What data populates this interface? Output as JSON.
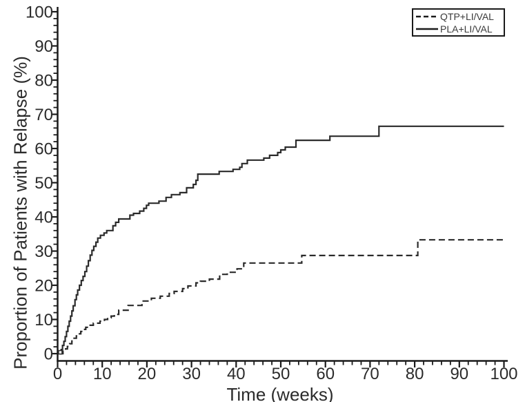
{
  "figure": {
    "background": "#ffffff",
    "axis_color": "#1a1a1a",
    "text_color": "#2b2b2b",
    "curve_color": "#2a2a2a"
  },
  "legend": {
    "position": "top-right",
    "items": [
      {
        "label": "QTP+LI/VAL",
        "style": "dashed"
      },
      {
        "label": "PLA+LI/VAL",
        "style": "solid"
      }
    ]
  },
  "chart_data": {
    "type": "line",
    "subtype": "kaplan-meier-step",
    "title": "",
    "xlabel": "Time (weeks)",
    "ylabel": "Proportion of Patients with Relapse (%)",
    "xlim": [
      0,
      100
    ],
    "ylim": [
      0,
      100
    ],
    "x_major_ticks": [
      0,
      10,
      20,
      30,
      40,
      50,
      60,
      70,
      80,
      90,
      100
    ],
    "x_minor_step": 2,
    "y_major_ticks": [
      0,
      10,
      20,
      30,
      40,
      50,
      60,
      70,
      80,
      90,
      100
    ],
    "y_minor_step": 2,
    "grid": false,
    "legend_position": "top-right",
    "annotations": [
      {
        "type": "open-square-marker",
        "x": 0.6,
        "y": 0.4
      }
    ],
    "series": [
      {
        "name": "QTP+LI/VAL",
        "line": "dashed",
        "color": "#2a2a2a",
        "points": [
          [
            0.5,
            0
          ],
          [
            1.2,
            0.7
          ],
          [
            1.8,
            1.4
          ],
          [
            2.2,
            2.1
          ],
          [
            2.7,
            2.9
          ],
          [
            3.2,
            3.7
          ],
          [
            3.7,
            4.5
          ],
          [
            4.2,
            5.2
          ],
          [
            4.7,
            5.8
          ],
          [
            5.2,
            6.5
          ],
          [
            5.7,
            7.1
          ],
          [
            6.3,
            7.7
          ],
          [
            7,
            8.3
          ],
          [
            8,
            8.9
          ],
          [
            9.5,
            9.5
          ],
          [
            10.5,
            10
          ],
          [
            11.2,
            10.5
          ],
          [
            12,
            11
          ],
          [
            12.7,
            11.5
          ],
          [
            13.7,
            12.7
          ],
          [
            15.8,
            14.1
          ],
          [
            18.9,
            15.4
          ],
          [
            21,
            16.2
          ],
          [
            23,
            16.8
          ],
          [
            25,
            17.6
          ],
          [
            26.1,
            18.2
          ],
          [
            28,
            19
          ],
          [
            29.2,
            19.8
          ],
          [
            31,
            20.7
          ],
          [
            32,
            21.2
          ],
          [
            34,
            21.8
          ],
          [
            36.3,
            23.2
          ],
          [
            38,
            23.8
          ],
          [
            40.2,
            24.8
          ],
          [
            41.7,
            26.5
          ],
          [
            54.7,
            28.7
          ],
          [
            80.7,
            33.3
          ],
          [
            100,
            33.3
          ]
        ]
      },
      {
        "name": "PLA+LI/VAL",
        "line": "solid",
        "color": "#2a2a2a",
        "points": [
          [
            0.5,
            0
          ],
          [
            0.8,
            1.2
          ],
          [
            1.1,
            2.4
          ],
          [
            1.4,
            3.6
          ],
          [
            1.7,
            5
          ],
          [
            2,
            6.5
          ],
          [
            2.3,
            8
          ],
          [
            2.6,
            9.5
          ],
          [
            2.9,
            11
          ],
          [
            3.2,
            12.5
          ],
          [
            3.5,
            14
          ],
          [
            3.9,
            15.8
          ],
          [
            4.2,
            17.2
          ],
          [
            4.5,
            18.6
          ],
          [
            4.9,
            20
          ],
          [
            5.3,
            21.4
          ],
          [
            5.7,
            22.6
          ],
          [
            6.1,
            24
          ],
          [
            6.5,
            25.6
          ],
          [
            6.9,
            27.2
          ],
          [
            7.3,
            28.8
          ],
          [
            7.7,
            30.2
          ],
          [
            8.1,
            31.4
          ],
          [
            8.6,
            32.6
          ],
          [
            9,
            33.8
          ],
          [
            9.6,
            34.6
          ],
          [
            10.4,
            35.3
          ],
          [
            11,
            36
          ],
          [
            12.4,
            37.4
          ],
          [
            13,
            38.4
          ],
          [
            13.7,
            39.4
          ],
          [
            16.2,
            40.5
          ],
          [
            17,
            41
          ],
          [
            18.4,
            41.7
          ],
          [
            19.3,
            42.5
          ],
          [
            19.9,
            43.4
          ],
          [
            20.4,
            44
          ],
          [
            22.7,
            44.6
          ],
          [
            24.3,
            45.7
          ],
          [
            25.5,
            46.5
          ],
          [
            27.4,
            47.1
          ],
          [
            28.9,
            48.5
          ],
          [
            30.4,
            49.5
          ],
          [
            31,
            50.7
          ],
          [
            31.4,
            52.5
          ],
          [
            36.2,
            53.3
          ],
          [
            39.3,
            53.9
          ],
          [
            40.8,
            54.5
          ],
          [
            41.3,
            55.6
          ],
          [
            42.5,
            56.6
          ],
          [
            46.2,
            57.2
          ],
          [
            47.5,
            58
          ],
          [
            49.3,
            58.8
          ],
          [
            50,
            59.6
          ],
          [
            51,
            60.4
          ],
          [
            53.4,
            62.4
          ],
          [
            61,
            63.6
          ],
          [
            72,
            66.5
          ],
          [
            100,
            66.5
          ]
        ]
      }
    ]
  }
}
